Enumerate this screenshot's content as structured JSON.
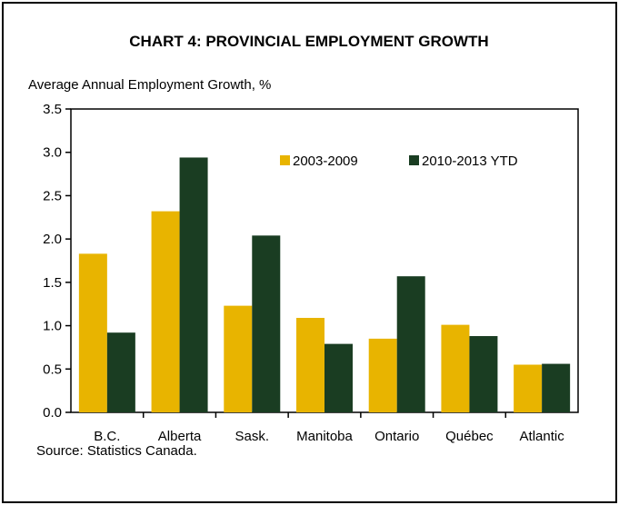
{
  "chart_data": {
    "type": "bar",
    "title": "CHART 4: PROVINCIAL EMPLOYMENT GROWTH",
    "ylabel": "Average Annual Employment Growth, %",
    "xlabel": "",
    "categories": [
      "B.C.",
      "Alberta",
      "Sask.",
      "Manitoba",
      "Ontario",
      "Québec",
      "Atlantic"
    ],
    "series": [
      {
        "name": "2003-2009",
        "color": "#e8b400",
        "values": [
          1.83,
          2.32,
          1.23,
          1.09,
          0.85,
          1.01,
          0.55
        ]
      },
      {
        "name": "2010-2013 YTD",
        "color": "#1a3d22",
        "values": [
          0.92,
          2.94,
          2.04,
          0.79,
          1.57,
          0.88,
          0.56
        ]
      }
    ],
    "ylim": [
      0,
      3.5
    ],
    "yticks": [
      "0.0",
      "0.5",
      "1.0",
      "1.5",
      "2.0",
      "2.5",
      "3.0",
      "3.5"
    ],
    "grid": false,
    "legend_position": "top-right"
  },
  "source": "Source: Statistics Canada."
}
